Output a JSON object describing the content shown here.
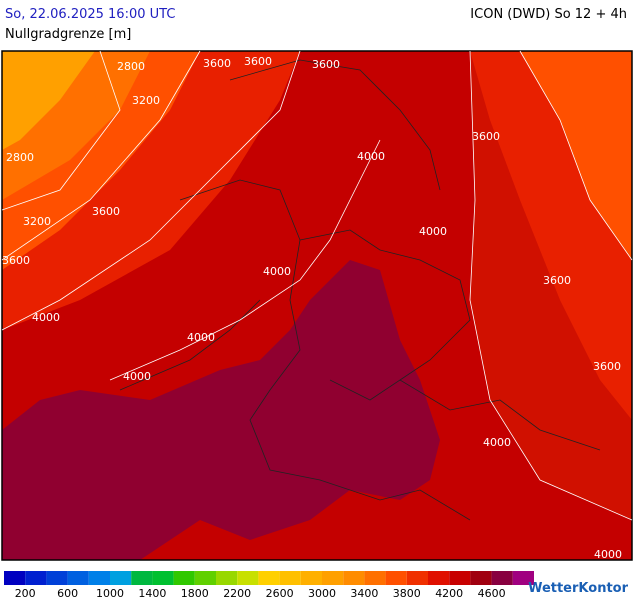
{
  "header": {
    "datetime": "So, 22.06.2025 16:00 UTC",
    "model": "ICON (DWD) So 12 + 4h",
    "parameter": "Nullgradgrenze [m]"
  },
  "map": {
    "contour_labels": [
      2800,
      3600,
      3600,
      3600,
      3200,
      2800,
      3600,
      3200,
      3600,
      4000,
      3600,
      4000,
      4000,
      3600,
      4000,
      4000,
      4000,
      3600,
      4000,
      4000
    ]
  },
  "colorbar": {
    "colors": [
      "#0000c0",
      "#0020d0",
      "#0040d8",
      "#0060e0",
      "#0080e8",
      "#00a0e0",
      "#00b840",
      "#00c030",
      "#30c800",
      "#60d000",
      "#98d800",
      "#c8e000",
      "#ffd000",
      "#ffc000",
      "#ffb000",
      "#ffa000",
      "#ff8c00",
      "#ff7000",
      "#ff5000",
      "#f03000",
      "#e01000",
      "#c80000",
      "#a00010",
      "#880040",
      "#a00080"
    ],
    "labels": [
      200,
      600,
      1000,
      1400,
      1800,
      2200,
      2600,
      3000,
      3400,
      3800,
      4200,
      4600
    ]
  },
  "logo": "WetterKontor"
}
